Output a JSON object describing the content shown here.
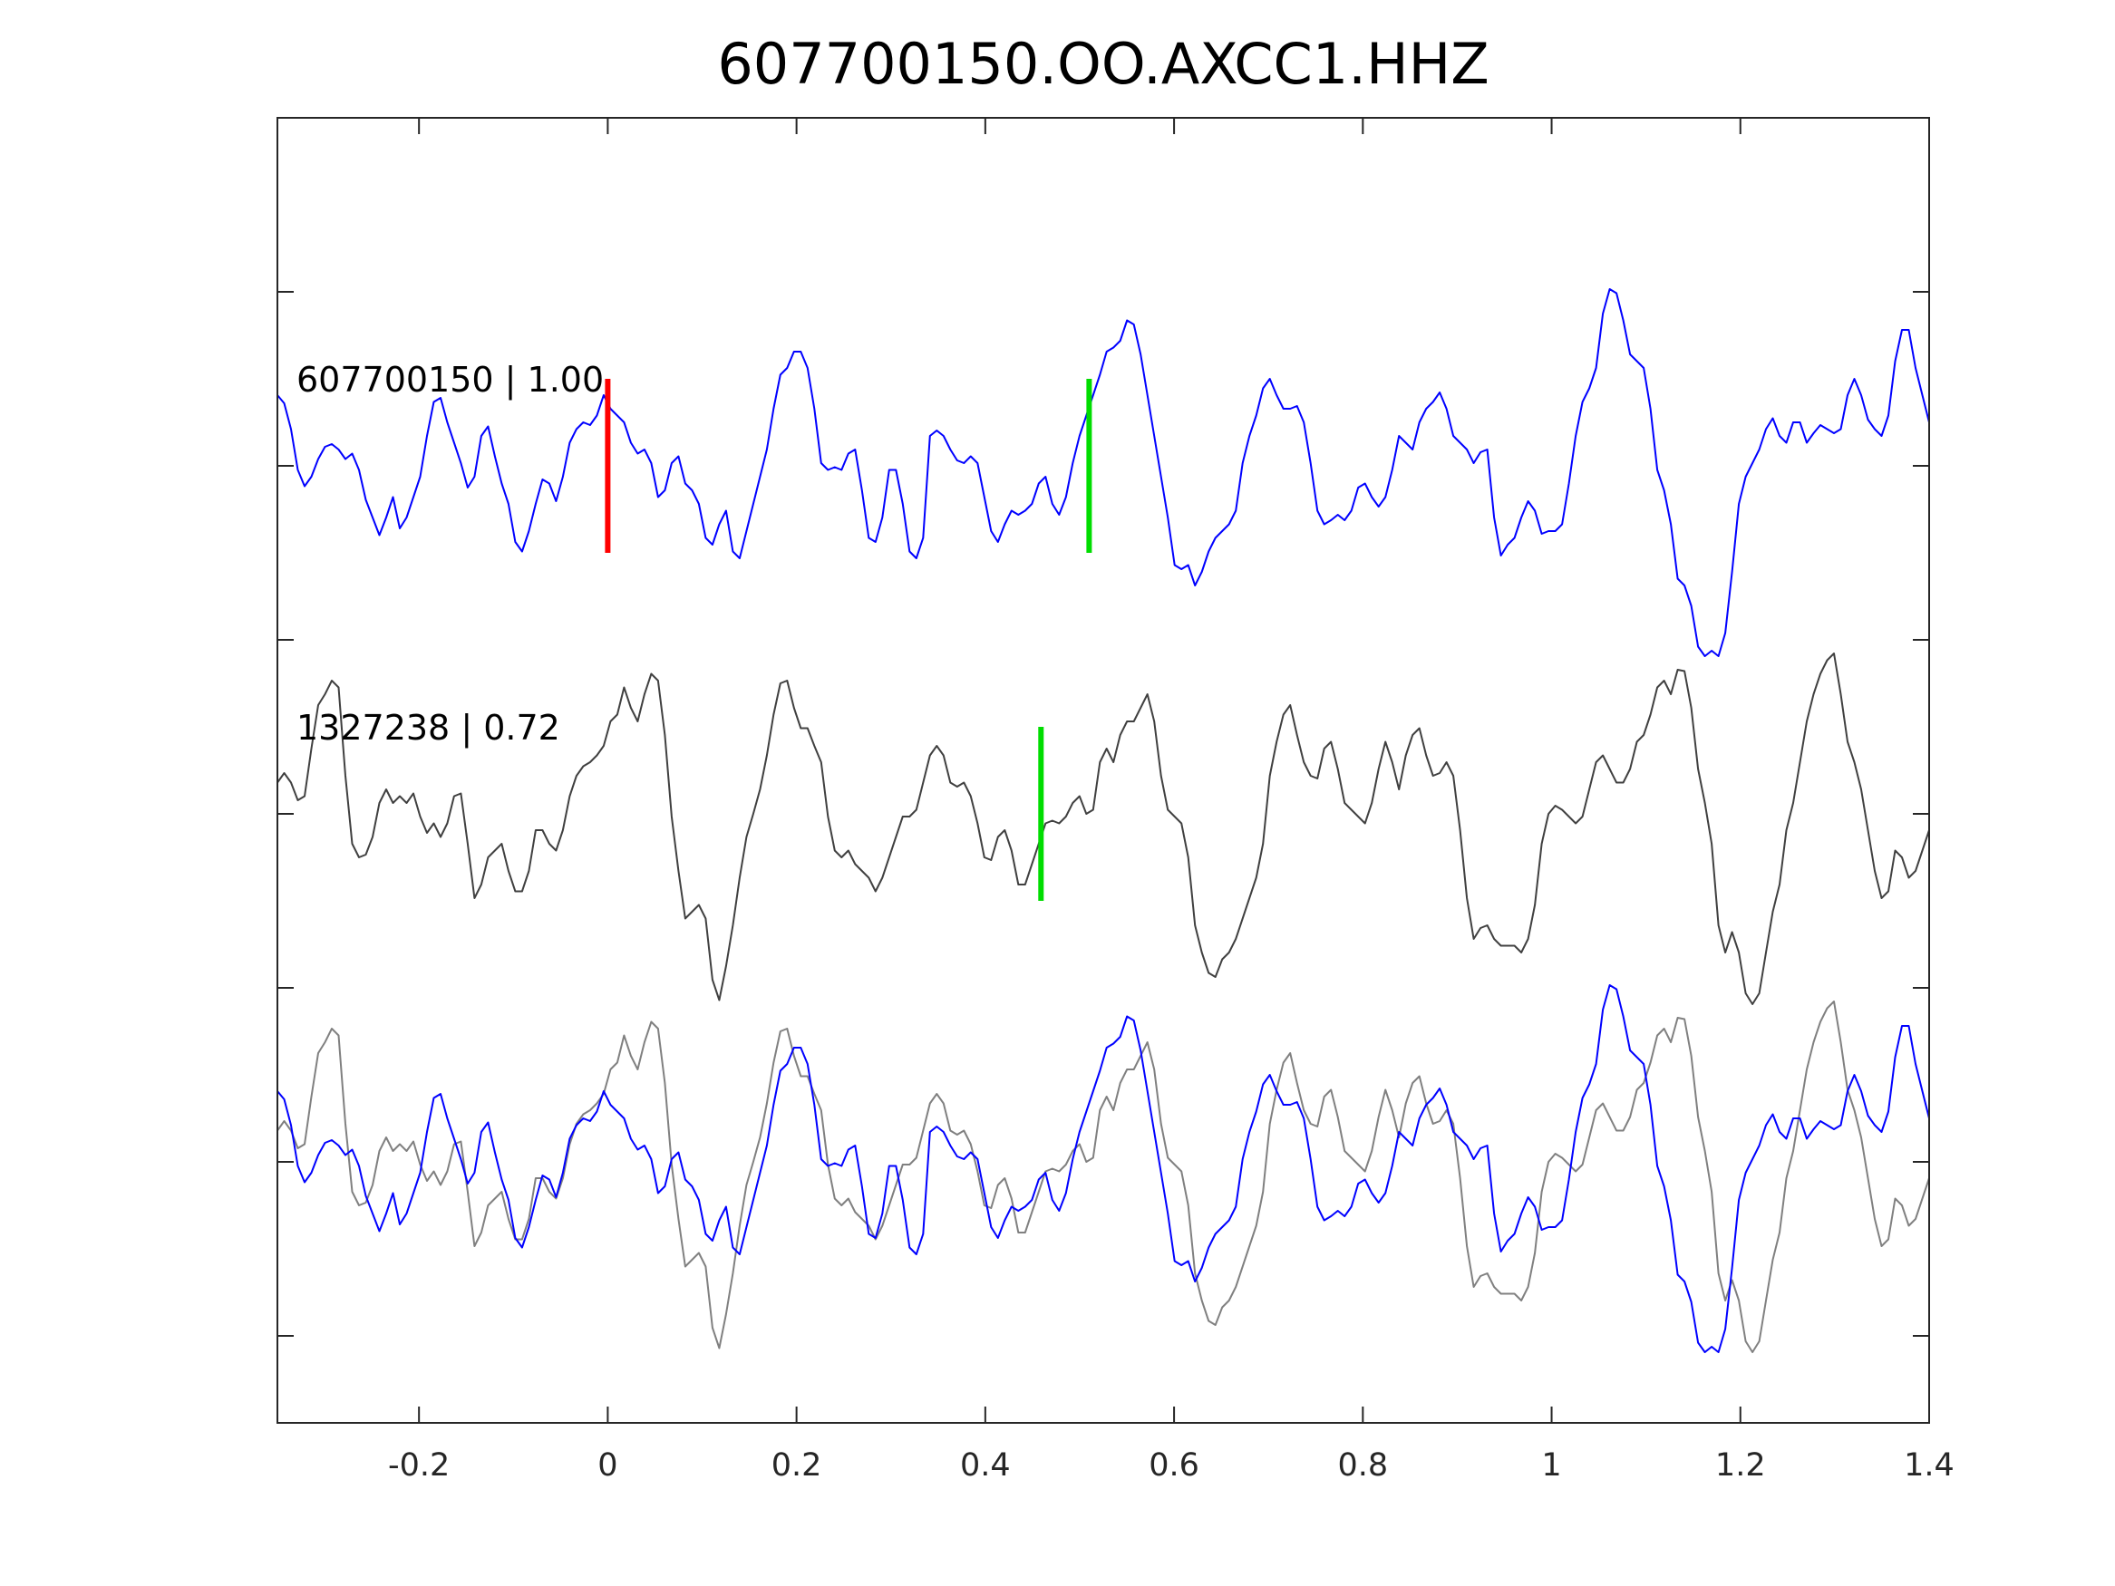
{
  "chart_data": {
    "type": "line",
    "title": "607700150.OO.AXCC1.HHZ",
    "xlabel": "",
    "ylabel": "",
    "xlim": [
      -0.35,
      1.4
    ],
    "ylim": [
      0,
      7.5
    ],
    "xticks": [
      -0.2,
      0,
      0.2,
      0.4,
      0.6,
      0.8,
      1,
      1.2,
      1.4
    ],
    "xtick_labels": [
      "-0.2",
      "0",
      "0.2",
      "0.4",
      "0.6",
      "0.8",
      "1",
      "1.2",
      "1.4"
    ],
    "yticks": [
      0.5,
      1.5,
      2.5,
      3.5,
      4.5,
      5.5,
      6.5
    ],
    "ytick_labels_shown": false,
    "grid": false,
    "amplitude_unit_per_count": 0.0078125,
    "series": [
      {
        "name": "607700150",
        "label": "607700150 | 1.00",
        "color": "#0000ff",
        "t_start": -0.35,
        "t_end": 1.4,
        "amplitudes": [
          52,
          46,
          27,
          -3,
          -15,
          -8,
          5,
          14,
          16,
          12,
          5,
          9,
          -3,
          -25,
          -38,
          -51,
          -38,
          -23,
          -46,
          -38,
          -23,
          -8,
          22,
          47,
          50,
          32,
          17,
          2,
          -16,
          -8,
          22,
          29,
          7,
          -13,
          -28,
          -56,
          -63,
          -48,
          -28,
          -10,
          -13,
          -26,
          -8,
          17,
          27,
          32,
          30,
          37,
          52,
          42,
          37,
          32,
          17,
          9,
          12,
          2,
          -23,
          -18,
          2,
          7,
          -13,
          -18,
          -28,
          -53,
          -58,
          -43,
          -33,
          -63,
          -68,
          -48,
          -28,
          -8,
          12,
          42,
          67,
          72,
          84,
          84,
          72,
          42,
          2,
          -3,
          -1,
          -3,
          9,
          12,
          -18,
          -53,
          -56,
          -38,
          -3,
          -3,
          -28,
          -63,
          -68,
          -53,
          22,
          26,
          22,
          12,
          4,
          2,
          7,
          2,
          -23,
          -48,
          -56,
          -43,
          -33,
          -36,
          -33,
          -28,
          -13,
          -8,
          -28,
          -36,
          -23,
          2,
          22,
          37,
          52,
          67,
          84,
          87,
          92,
          107,
          104,
          82,
          52,
          22,
          -8,
          -38,
          -73,
          -76,
          -73,
          -88,
          -78,
          -63,
          -53,
          -48,
          -43,
          -33,
          2,
          22,
          37,
          57,
          64,
          52,
          42,
          42,
          44,
          32,
          2,
          -33,
          -43,
          -40,
          -36,
          -40,
          -33,
          -16,
          -13,
          -23,
          -30,
          -23,
          -3,
          22,
          17,
          12,
          32,
          42,
          47,
          54,
          42,
          22,
          17,
          12,
          2,
          10,
          12,
          -38,
          -66,
          -58,
          -53,
          -38,
          -26,
          -33,
          -50,
          -48,
          -48,
          -43,
          -13,
          22,
          47,
          57,
          72,
          112,
          130,
          127,
          107,
          82,
          77,
          72,
          42,
          -3,
          -18,
          -43,
          -83,
          -88,
          -103,
          -133,
          -140,
          -136,
          -140,
          -123,
          -78,
          -28,
          -8,
          2,
          12,
          27,
          35,
          22,
          17,
          32,
          32,
          17,
          24,
          30,
          27,
          24,
          27,
          52,
          64,
          52,
          34,
          27,
          22,
          37,
          77,
          100,
          100,
          72,
          52,
          32
        ]
      },
      {
        "name": "1327238",
        "label": "1327238 | 0.72",
        "color": "#404040",
        "t_start": -0.35,
        "t_end": 1.4,
        "amplitudes": [
          23,
          30,
          23,
          10,
          13,
          48,
          80,
          88,
          98,
          93,
          28,
          -22,
          -32,
          -30,
          -17,
          8,
          18,
          8,
          13,
          8,
          15,
          -2,
          -14,
          -7,
          -17,
          -7,
          13,
          15,
          -22,
          -62,
          -52,
          -32,
          -27,
          -22,
          -42,
          -57,
          -57,
          -42,
          -12,
          -12,
          -22,
          -27,
          -12,
          13,
          28,
          35,
          38,
          43,
          50,
          68,
          73,
          93,
          78,
          68,
          88,
          103,
          98,
          58,
          -2,
          -42,
          -77,
          -72,
          -67,
          -77,
          -122,
          -137,
          -112,
          -82,
          -47,
          -17,
          0,
          18,
          43,
          73,
          96,
          98,
          78,
          63,
          63,
          50,
          38,
          -2,
          -27,
          -32,
          -27,
          -37,
          -42,
          -47,
          -57,
          -47,
          -32,
          -17,
          -2,
          -2,
          3,
          23,
          43,
          50,
          43,
          23,
          20,
          23,
          13,
          -7,
          -32,
          -34,
          -17,
          -12,
          -27,
          -52,
          -52,
          -37,
          -22,
          -7,
          -5,
          -7,
          -2,
          8,
          13,
          0,
          3,
          38,
          48,
          38,
          58,
          68,
          68,
          78,
          88,
          68,
          28,
          3,
          -2,
          -7,
          -32,
          -82,
          -102,
          -117,
          -120,
          -107,
          -102,
          -92,
          -77,
          -62,
          -47,
          -22,
          28,
          53,
          73,
          80,
          58,
          38,
          28,
          26,
          48,
          53,
          33,
          8,
          3,
          -2,
          -7,
          8,
          33,
          53,
          38,
          18,
          43,
          58,
          63,
          43,
          28,
          30,
          38,
          28,
          -12,
          -62,
          -92,
          -84,
          -82,
          -92,
          -97,
          -97,
          -97,
          -102,
          -92,
          -67,
          -22,
          0,
          6,
          3,
          -2,
          -7,
          -2,
          18,
          38,
          43,
          33,
          23,
          23,
          33,
          53,
          58,
          73,
          93,
          98,
          88,
          106,
          105,
          78,
          33,
          8,
          -22,
          -82,
          -102,
          -87,
          -102,
          -132,
          -140,
          -132,
          -102,
          -72,
          -52,
          -12,
          8,
          38,
          68,
          88,
          103,
          113,
          118,
          88,
          53,
          38,
          18,
          -12,
          -42,
          -62,
          -57,
          -27,
          -32,
          -47,
          -42,
          -27,
          -12
        ]
      }
    ],
    "panels": [
      {
        "name": "panel-target",
        "baseline": 5.5,
        "traces": [
          {
            "series": 0,
            "color": "#0000ff"
          }
        ]
      },
      {
        "name": "panel-template",
        "baseline": 3.5,
        "traces": [
          {
            "series": 1,
            "color": "#404040"
          }
        ]
      },
      {
        "name": "panel-overlay",
        "baseline": 1.5,
        "traces": [
          {
            "series": 1,
            "color": "#808080"
          },
          {
            "series": 0,
            "color": "#0000ff"
          }
        ]
      }
    ],
    "picks": [
      {
        "panel": 0,
        "t": 0.0,
        "color": "#ff0000",
        "half_height": 0.5
      },
      {
        "panel": 0,
        "t": 0.51,
        "color": "#00dd00",
        "half_height": 0.5
      },
      {
        "panel": 1,
        "t": 0.459,
        "color": "#00dd00",
        "half_height": 0.5
      }
    ]
  }
}
